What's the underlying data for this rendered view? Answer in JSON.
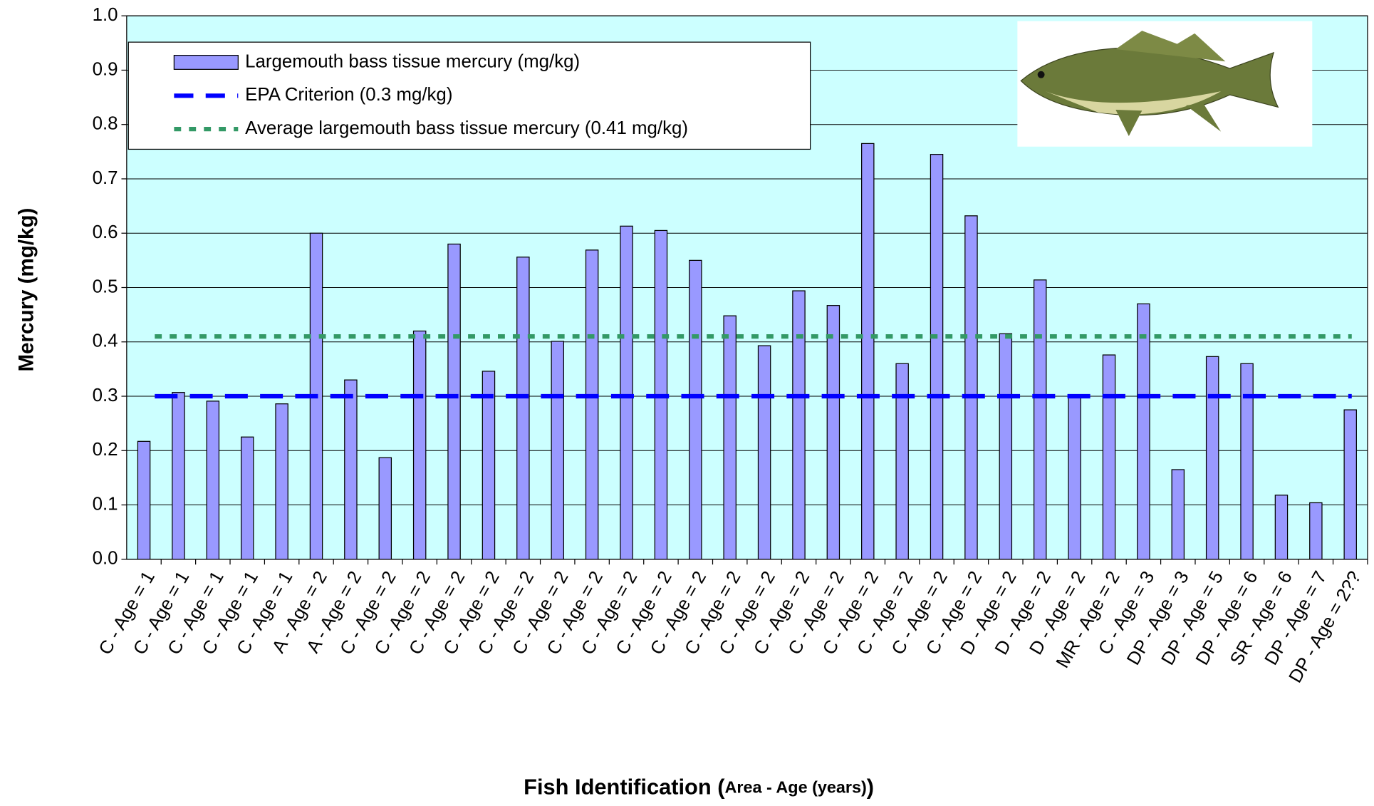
{
  "chart_data": {
    "type": "bar",
    "x_label": [
      "Fish Identification (",
      "Area - Age (years)",
      ")"
    ],
    "y_label": "Mercury (mg/kg)",
    "categories": [
      "C - Age = 1",
      "C - Age = 1",
      "C - Age = 1",
      "C - Age = 1",
      "C - Age = 1",
      "A - Age = 2",
      "A - Age = 2",
      "C - Age = 2",
      "C - Age = 2",
      "C - Age = 2",
      "C - Age = 2",
      "C - Age = 2",
      "C - Age = 2",
      "C - Age = 2",
      "C - Age = 2",
      "C - Age = 2",
      "C - Age = 2",
      "C - Age = 2",
      "C - Age = 2",
      "C - Age = 2",
      "C - Age = 2",
      "C - Age = 2",
      "C - Age = 2",
      "C - Age = 2",
      "C - Age = 2",
      "D - Age = 2",
      "D - Age = 2",
      "D - Age = 2",
      "MR - Age = 2",
      "C - Age = 3",
      "DP - Age = 3",
      "DP - Age = 5",
      "DP - Age = 6",
      "SR - Age = 6",
      "DP - Age = 7",
      "DP - Age = 2??"
    ],
    "series": [
      {
        "name": "Largemouth bass tissue mercury  (mg/kg)",
        "color": "#9999ff",
        "values": [
          0.217,
          0.307,
          0.291,
          0.225,
          0.286,
          0.6,
          0.33,
          0.187,
          0.42,
          0.58,
          0.346,
          0.556,
          0.401,
          0.569,
          0.613,
          0.605,
          0.55,
          0.448,
          0.393,
          0.494,
          0.467,
          0.765,
          0.36,
          0.745,
          0.632,
          0.415,
          0.514,
          0.302,
          0.376,
          0.47,
          0.165,
          0.373,
          0.36,
          0.118,
          0.104,
          0.275
        ]
      }
    ],
    "reference_lines": [
      {
        "name": "EPA Criterion (0.3 mg/kg)",
        "value": 0.3,
        "color": "#0000ff",
        "style": "dashed"
      },
      {
        "name": "Average largemouth bass tissue mercury (0.41 mg/kg)",
        "value": 0.41,
        "color": "#339966",
        "style": "dotted"
      }
    ],
    "ylim": [
      0,
      1
    ],
    "yticks": [
      {
        "value": 0,
        "label": "0.0"
      },
      0.1,
      0.2,
      0.3,
      0.4,
      0.5,
      0.6,
      0.7,
      0.8,
      0.9,
      {
        "value": 1,
        "label": "1.0"
      }
    ],
    "grid": true,
    "plot_background": "#ccffff",
    "legend": "upper left"
  }
}
